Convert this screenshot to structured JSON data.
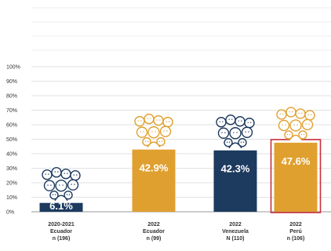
{
  "chart_data": {
    "type": "bar",
    "ylim": [
      0,
      100
    ],
    "yticks": [
      "0%",
      "10%",
      "20%",
      "30%",
      "40%",
      "50%",
      "60%",
      "70%",
      "80%",
      "90%",
      "100%"
    ],
    "categories": [
      [
        "2020-2021",
        "Ecuador",
        "n (196)"
      ],
      [
        "2022",
        "Ecuador",
        "n (99)"
      ],
      [
        "2022",
        "Venezuela",
        "N (110)"
      ],
      [
        "2022",
        "Perú",
        "n (106)"
      ]
    ],
    "values": [
      6.1,
      42.9,
      42.3,
      47.6
    ],
    "value_labels": [
      "6.1%",
      "42.9%",
      "42.3%",
      "47.6%"
    ],
    "bar_colors": [
      "#1d3a5f",
      "#e0a030",
      "#1d3a5f",
      "#e0a030"
    ],
    "icon_colors": [
      "#1d3a5f",
      "#e0a030",
      "#1d3a5f",
      "#e0a030"
    ],
    "highlighted_index": 3,
    "highlight_color": "#c8303a",
    "grid": true
  }
}
